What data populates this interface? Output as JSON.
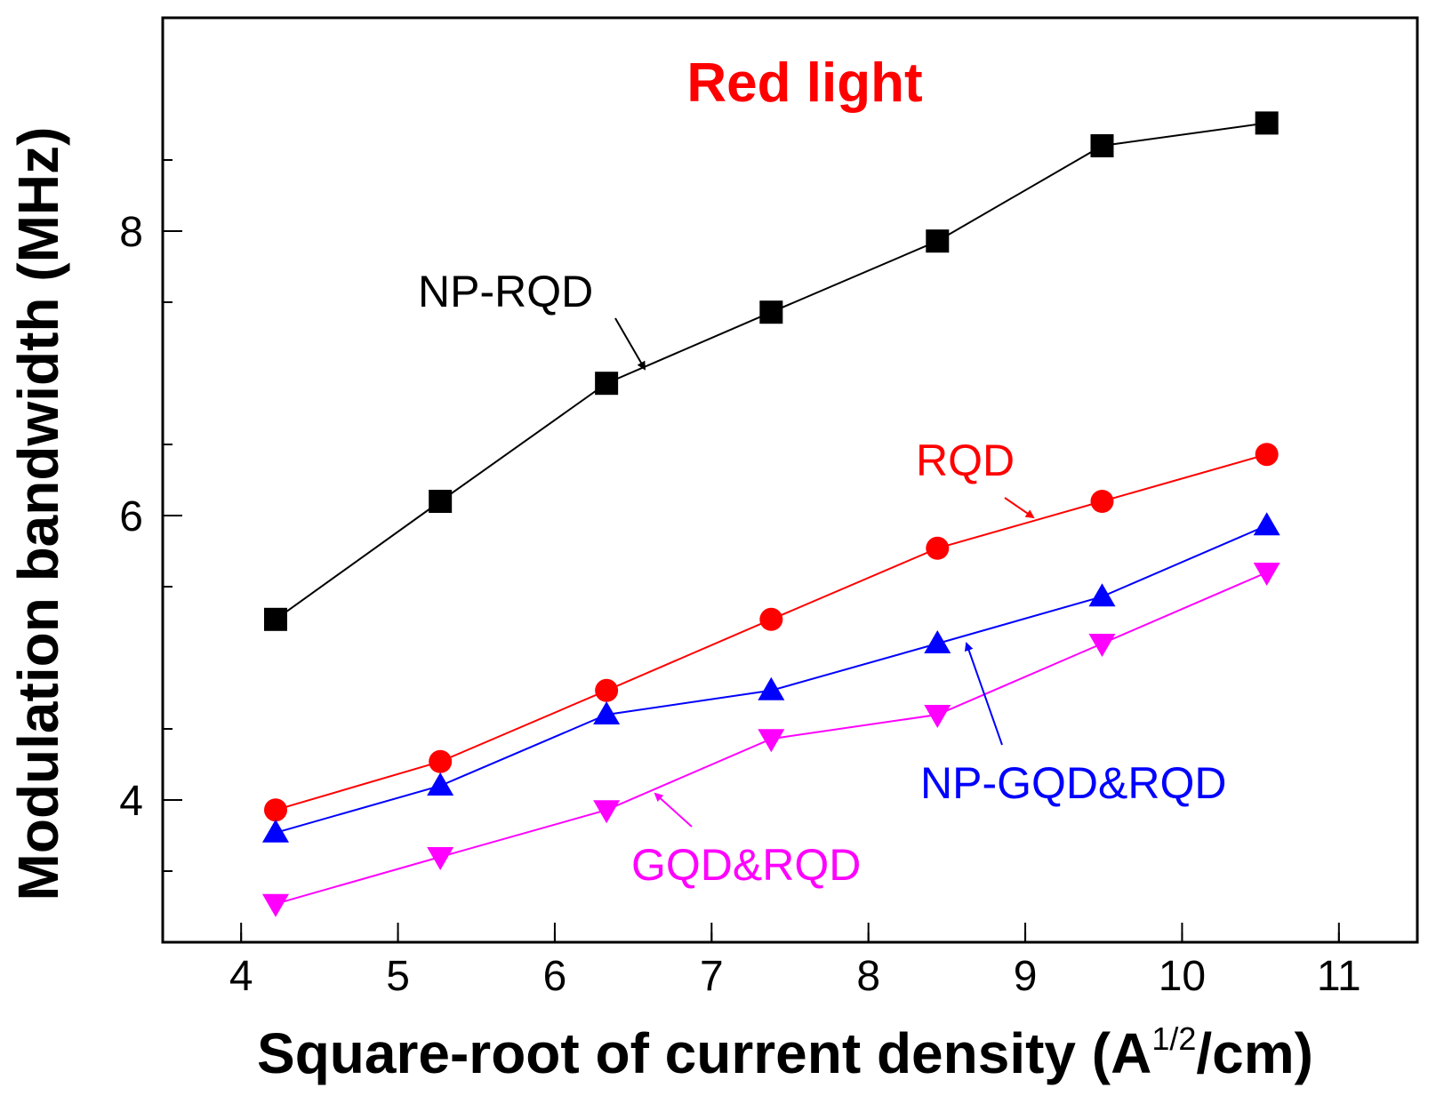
{
  "chart_data": {
    "type": "line",
    "title": "Red light",
    "title_color": "#ff0000",
    "xlabel": "Square-root of current density (A",
    "xlabel_superscript": "1/2",
    "xlabel_suffix": "/cm)",
    "ylabel": "Modulation bandwidth (MHz)",
    "xlim": [
      3.5,
      11.5
    ],
    "ylim": [
      3.0,
      9.5
    ],
    "x_ticks": [
      "4",
      "5",
      "6",
      "7",
      "8",
      "9",
      "10",
      "11"
    ],
    "y_ticks": [
      "4",
      "6",
      "8"
    ],
    "grid": false,
    "legend": "none (inline annotations with arrows)",
    "x": [
      4.22,
      5.27,
      6.33,
      7.38,
      8.44,
      9.49,
      10.54
    ],
    "series": [
      {
        "name": "NP-RQD",
        "color": "#000000",
        "marker": "square",
        "values": [
          5.27,
          6.1,
          6.93,
          7.43,
          7.93,
          8.6,
          8.76
        ]
      },
      {
        "name": "RQD",
        "color": "#ff0000",
        "marker": "circle",
        "values": [
          3.93,
          4.27,
          4.77,
          5.27,
          5.77,
          6.1,
          6.43
        ]
      },
      {
        "name": "NP-GQD&RQD",
        "color": "#0000ff",
        "marker": "triangle-up",
        "values": [
          3.77,
          4.1,
          4.6,
          4.77,
          5.1,
          5.43,
          5.93
        ]
      },
      {
        "name": "GQD&RQD",
        "color": "#ff00ff",
        "marker": "triangle-down",
        "values": [
          3.27,
          3.6,
          3.93,
          4.43,
          4.6,
          5.1,
          5.6
        ]
      }
    ]
  }
}
